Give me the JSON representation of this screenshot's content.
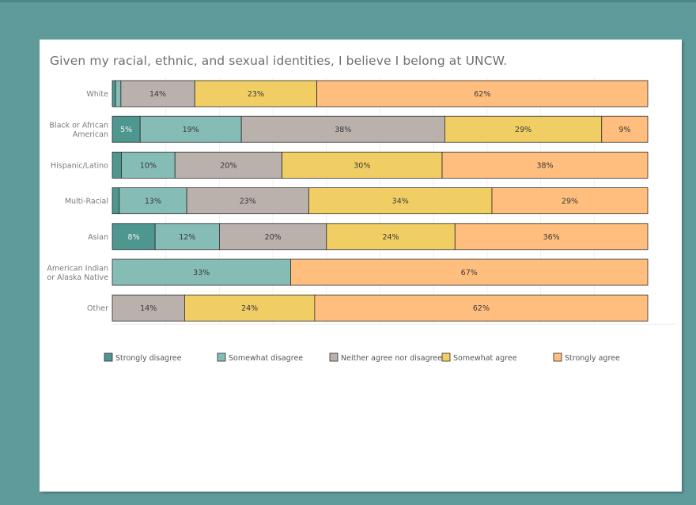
{
  "chart_data": {
    "type": "bar",
    "orientation": "horizontal",
    "stacked": true,
    "title": "Given my racial, ethnic, and sexual identities, I believe I belong at UNCW.",
    "xlabel": "",
    "ylabel": "",
    "xlim": [
      0,
      100
    ],
    "legend_position": "bottom",
    "categories": [
      "White",
      "Black or African American",
      "Hispanic/Latino",
      "Multi-Racial",
      "Asian",
      "American Indian or Alaska Native",
      "Other"
    ],
    "category_lines": [
      [
        "White"
      ],
      [
        "Black or African",
        "American"
      ],
      [
        "Hispanic/Latino"
      ],
      [
        "Multi-Racial"
      ],
      [
        "Asian"
      ],
      [
        "American Indian",
        "or Alaska Native"
      ],
      [
        "Other"
      ]
    ],
    "series": [
      {
        "name": "Strongly disagree",
        "color": "#4e9690",
        "values": [
          0.6,
          5.2,
          1.7,
          1.3,
          8.0,
          0,
          0
        ],
        "labels": [
          "",
          "5%",
          "",
          "",
          "8%",
          "",
          ""
        ]
      },
      {
        "name": "Somewhat disagree",
        "color": "#86bcb6",
        "values": [
          1.0,
          18.9,
          10.0,
          12.6,
          12.0,
          33.3,
          0
        ],
        "labels": [
          "",
          "19%",
          "10%",
          "13%",
          "12%",
          "33%",
          ""
        ]
      },
      {
        "name": "Neither agree nor disagree",
        "color": "#bab0ac",
        "values": [
          13.8,
          38.0,
          20.0,
          22.8,
          20.0,
          0,
          13.5
        ],
        "labels": [
          "14%",
          "38%",
          "20%",
          "23%",
          "20%",
          "",
          "14%"
        ]
      },
      {
        "name": "Somewhat agree",
        "color": "#f1ce63",
        "values": [
          22.8,
          29.3,
          29.9,
          34.2,
          24.0,
          0,
          24.3
        ],
        "labels": [
          "23%",
          "29%",
          "30%",
          "34%",
          "24%",
          "",
          "24%"
        ]
      },
      {
        "name": "Strongly agree",
        "color": "#ffbe7d",
        "values": [
          61.8,
          8.6,
          38.4,
          29.1,
          36.0,
          66.7,
          62.2
        ],
        "labels": [
          "62%",
          "9%",
          "38%",
          "29%",
          "36%",
          "67%",
          "62%"
        ]
      }
    ]
  }
}
